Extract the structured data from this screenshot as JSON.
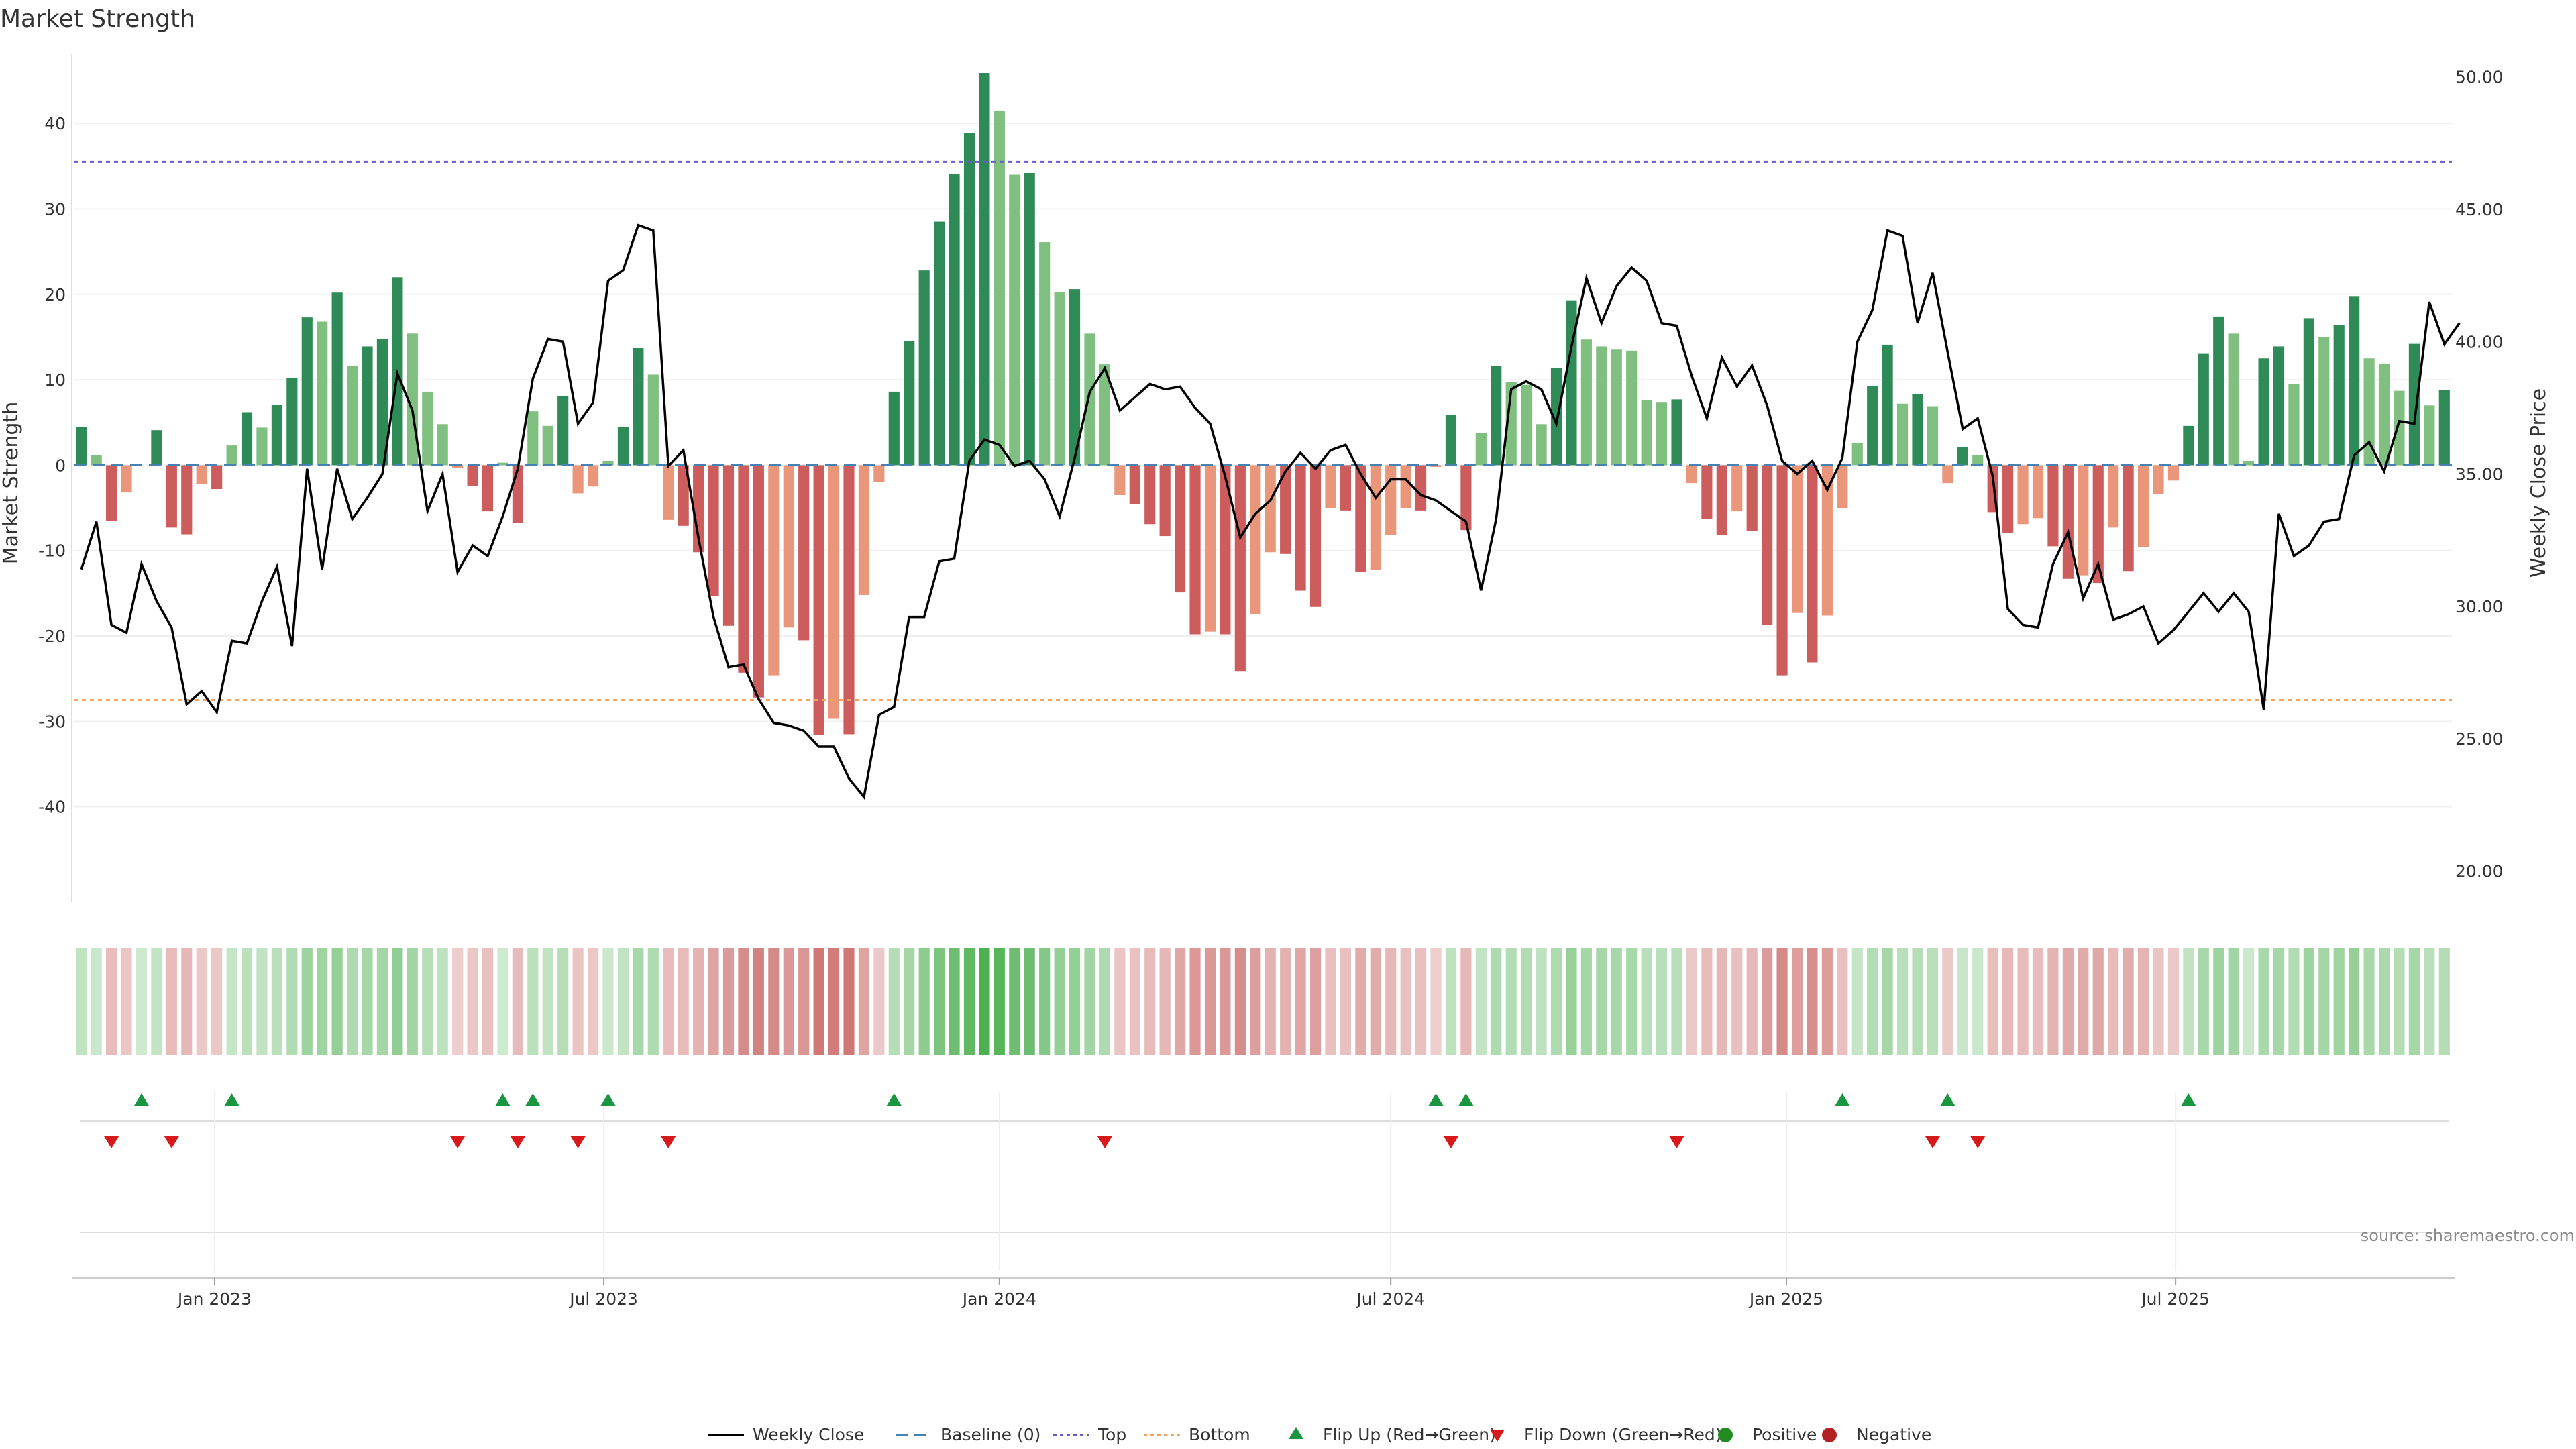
{
  "title": "Market Strength",
  "source_text": "source: sharemaestro.com",
  "colors": {
    "strong_green": "#2e8b57",
    "light_green": "#7fbf7f",
    "strong_red": "#cd5c5c",
    "light_red": "#e9967a",
    "close_line": "#000000",
    "baseline": "#4682b4",
    "top_line": "#6a5acd",
    "bottom_line": "#f4a460",
    "flip_up": "#1a9641",
    "flip_down": "#d7191c",
    "positive_dot": "#228b22",
    "negative_dot": "#b22222"
  },
  "legend": [
    {
      "label": "Weekly Close",
      "icon": "line-solid"
    },
    {
      "label": "Baseline (0)",
      "icon": "line-dashed"
    },
    {
      "label": "Top",
      "icon": "line-dotted"
    },
    {
      "label": "Bottom",
      "icon": "line-dotted"
    },
    {
      "label": "Flip Up (Red→Green)",
      "icon": "triangle-up"
    },
    {
      "label": "Flip Down (Green→Red)",
      "icon": "triangle-down"
    },
    {
      "label": "Positive",
      "icon": "dot"
    },
    {
      "label": "Negative",
      "icon": "dot"
    }
  ],
  "chart_data": {
    "type": "bar",
    "x_start": "2022-10-31",
    "x_step_days": 7,
    "x_tick_labels": [
      "Jan 2023",
      "Jul 2023",
      "Jan 2024",
      "Jul 2024",
      "Jan 2025",
      "Jul 2025"
    ],
    "x_tick_dates": [
      "2023-01-01",
      "2023-07-01",
      "2024-01-01",
      "2024-07-01",
      "2025-01-01",
      "2025-07-01"
    ],
    "ylabel": "Market Strength",
    "ylim": [
      -50,
      47
    ],
    "yticks": [
      -40,
      -30,
      -20,
      -10,
      0,
      10,
      20,
      30,
      40
    ],
    "y2label": "Weekly Close Price",
    "y2lim": [
      19.2,
      50.5
    ],
    "y2ticks": [
      "20.00",
      "25.00",
      "30.00",
      "35.00",
      "40.00",
      "45.00",
      "50.00"
    ],
    "top_level": 35.5,
    "bottom_level": -27.5,
    "series": [
      {
        "name": "Market Strength",
        "values": [
          4.5,
          1.2,
          -6.5,
          -3.2,
          0,
          4.1,
          -7.3,
          -8.1,
          -2.2,
          -2.8,
          2.3,
          6.2,
          4.4,
          7.1,
          10.2,
          17.3,
          16.8,
          20.2,
          11.6,
          13.9,
          14.8,
          22,
          15.4,
          8.6,
          4.8,
          -0.3,
          -2.4,
          -5.4,
          0.3,
          -6.8,
          6.3,
          4.6,
          8.1,
          -3.3,
          -2.5,
          0.5,
          4.5,
          13.7,
          10.6,
          -6.4,
          -7.1,
          -10.2,
          -15.3,
          -18.8,
          -24.3,
          -27.2,
          -24.6,
          -19,
          -20.5,
          -31.6,
          -29.7,
          -31.5,
          -15.2,
          -2,
          8.6,
          14.5,
          22.8,
          28.5,
          34.1,
          38.9,
          45.9,
          41.5,
          34,
          34.2,
          26.1,
          20.3,
          20.6,
          15.4,
          11.8,
          -3.5,
          -4.6,
          -6.9,
          -8.3,
          -14.9,
          -19.8,
          -19.5,
          -19.8,
          -24.1,
          -17.4,
          -10.2,
          -10.4,
          -14.7,
          -16.6,
          -5,
          -5.3,
          -12.5,
          -12.3,
          -8.2,
          -5,
          -5.3,
          -0.2,
          5.9,
          -7.6,
          3.8,
          11.6,
          9.7,
          9.4,
          4.8,
          11.4,
          19.3,
          14.7,
          13.9,
          13.6,
          13.4,
          7.6,
          7.4,
          7.7,
          -2.1,
          -6.3,
          -8.2,
          -5.4,
          -7.7,
          -18.7,
          -24.6,
          -17.3,
          -23.1,
          -17.6,
          -5,
          2.6,
          9.3,
          14.1,
          7.2,
          8.3,
          6.9,
          -2.1,
          2.1,
          1.2,
          -5.5,
          -7.9,
          -6.9,
          -6.2,
          -9.5,
          -13.3,
          -12.9,
          -13.8,
          -7.3,
          -12.4,
          -9.6,
          -3.4,
          -1.8,
          4.6,
          13.1,
          17.4,
          15.4,
          0.5,
          12.5,
          13.9,
          9.5,
          17.2,
          15,
          16.4,
          19.8,
          12.5,
          11.9,
          8.7,
          14.2,
          7,
          8.8
        ]
      },
      {
        "name": "Weekly Close",
        "values": [
          31.4,
          33.2,
          29.3,
          29,
          31.6,
          30.2,
          29.2,
          26.3,
          26.8,
          26,
          28.7,
          28.6,
          30.2,
          31.5,
          28.5,
          35.2,
          31.4,
          35.2,
          33.3,
          34.1,
          35,
          38.8,
          37.4,
          33.6,
          35,
          31.3,
          32.3,
          31.9,
          33.4,
          35.2,
          38.6,
          40.1,
          40,
          36.9,
          37.7,
          42.3,
          42.7,
          44.4,
          44.2,
          35.3,
          35.9,
          32.6,
          29.6,
          27.7,
          27.8,
          26.5,
          25.6,
          25.5,
          25.3,
          24.7,
          24.7,
          23.5,
          22.8,
          25.9,
          26.2,
          29.6,
          29.6,
          31.7,
          31.8,
          35.5,
          36.3,
          36.1,
          35.3,
          35.5,
          34.8,
          33.4,
          35.6,
          38.1,
          39,
          37.4,
          37.9,
          38.4,
          38.2,
          38.3,
          37.5,
          36.9,
          34.9,
          32.6,
          33.5,
          34,
          35.1,
          35.8,
          35.2,
          35.9,
          36.1,
          35,
          34.1,
          34.8,
          34.8,
          34.2,
          34,
          33.6,
          33.2,
          30.6,
          33.3,
          38.2,
          38.5,
          38.2,
          36.9,
          39.8,
          42.4,
          40.7,
          42.1,
          42.8,
          42.3,
          40.7,
          40.6,
          38.7,
          37.1,
          39.4,
          38.3,
          39.1,
          37.6,
          35.5,
          35,
          35.5,
          34.4,
          35.6,
          40,
          41.2,
          44.2,
          44,
          40.7,
          42.6,
          39.6,
          36.7,
          37.1,
          34.9,
          29.9,
          29.3,
          29.2,
          31.6,
          32.8,
          30.3,
          31.6,
          29.5,
          29.7,
          30,
          28.6,
          29.1,
          29.8,
          30.5,
          29.8,
          30.5,
          29.8,
          26.1,
          33.5,
          31.9,
          32.3,
          33.2,
          33.3,
          35.7,
          36.2,
          35.1,
          37,
          36.9,
          41.5,
          39.9,
          40.7
        ]
      }
    ],
    "flip_up_weeks": [
      4,
      10,
      28,
      30,
      35,
      54,
      90,
      92,
      117,
      124,
      140
    ],
    "flip_down_weeks": [
      2,
      6,
      25,
      29,
      33,
      39,
      68,
      91,
      106,
      123,
      126
    ]
  }
}
